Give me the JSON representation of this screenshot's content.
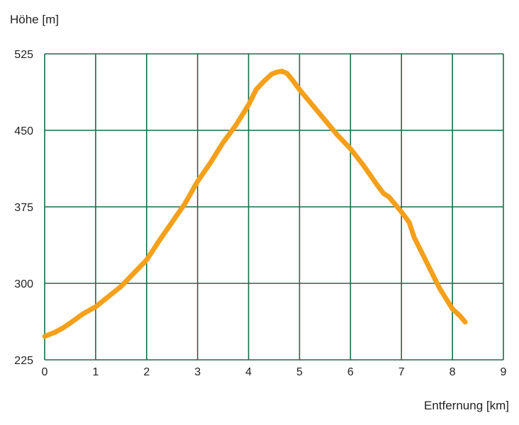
{
  "chart_data": {
    "type": "line",
    "ylabel": "Höhe [m]",
    "xlabel": "Entfernung [km]",
    "xlim": [
      0,
      9
    ],
    "ylim": [
      225,
      525
    ],
    "x_ticks": [
      0,
      1,
      2,
      3,
      4,
      5,
      6,
      7,
      8,
      9
    ],
    "y_ticks": [
      225,
      300,
      375,
      450,
      525
    ],
    "grid": true,
    "grid_color": "#1a6b4a",
    "line_color": "#f5a01a",
    "series": [
      {
        "x": [
          0.0,
          0.2,
          0.35,
          0.5,
          0.75,
          1.0,
          1.25,
          1.5,
          1.75,
          2.0,
          2.25,
          2.5,
          2.75,
          3.0,
          3.25,
          3.5,
          3.75,
          4.0,
          4.15,
          4.3,
          4.45,
          4.55,
          4.65,
          4.75,
          4.85,
          5.0,
          5.25,
          5.5,
          5.75,
          6.0,
          6.25,
          6.5,
          6.65,
          6.75,
          7.0,
          7.15,
          7.25,
          7.5,
          7.75,
          8.0,
          8.15,
          8.25
        ],
        "y": [
          248,
          252,
          256,
          261,
          270,
          277,
          287,
          297,
          310,
          323,
          342,
          360,
          378,
          400,
          418,
          438,
          455,
          475,
          490,
          498,
          505,
          507,
          508,
          506,
          500,
          490,
          475,
          460,
          445,
          432,
          416,
          398,
          388,
          385,
          370,
          360,
          345,
          320,
          295,
          275,
          268,
          262
        ]
      }
    ]
  }
}
